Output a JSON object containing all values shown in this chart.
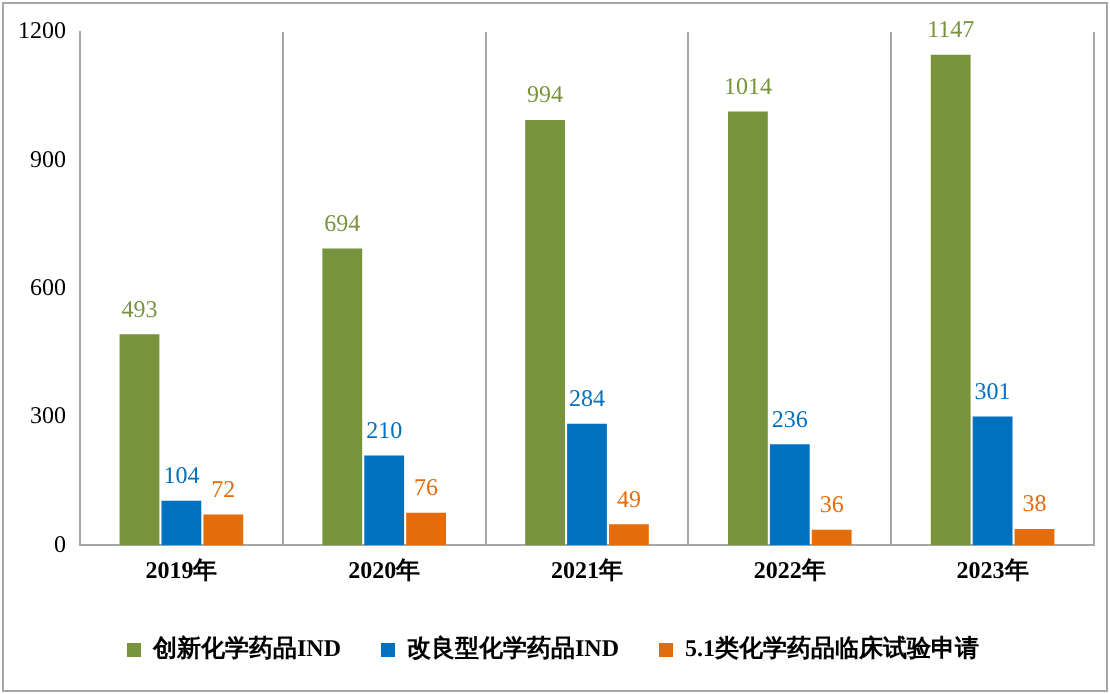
{
  "chart_data": {
    "type": "bar",
    "categories": [
      "2019年",
      "2020年",
      "2021年",
      "2022年",
      "2023年"
    ],
    "series": [
      {
        "name": "创新化学药品IND",
        "color": "#77933c",
        "values": [
          493,
          694,
          994,
          1014,
          1147
        ]
      },
      {
        "name": "改良型化学药品IND",
        "color": "#0070c0",
        "values": [
          104,
          210,
          284,
          236,
          301
        ]
      },
      {
        "name": "5.1类化学药品临床试验申请",
        "color": "#e46c0a",
        "values": [
          72,
          76,
          49,
          36,
          38
        ]
      }
    ],
    "ylim": [
      0,
      1200
    ],
    "yticks": [
      0,
      300,
      600,
      900,
      1200
    ],
    "grid": "x",
    "legend": "bottom",
    "data_labels": true
  }
}
